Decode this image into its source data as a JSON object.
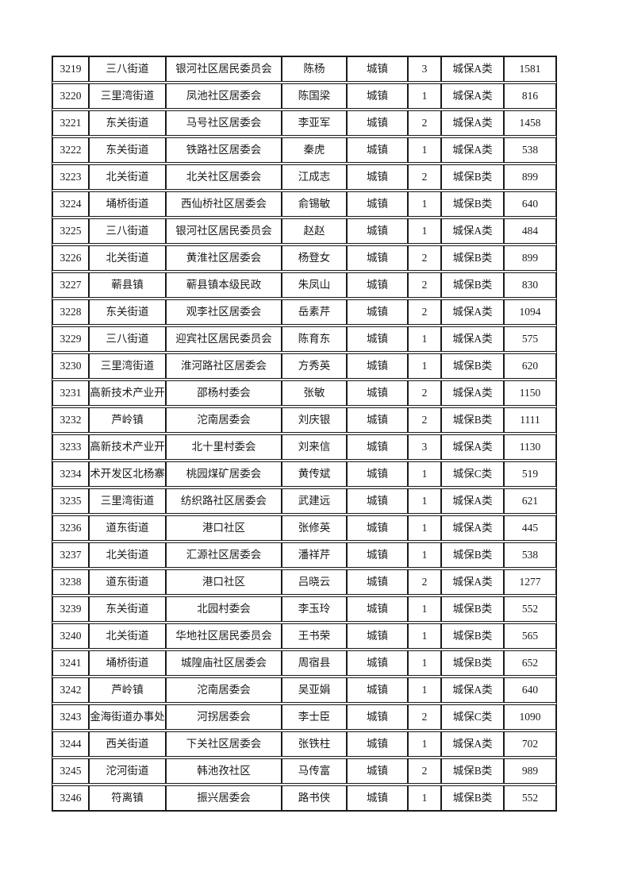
{
  "page": {
    "background_color": "#ffffff",
    "text_color": "#1a1a1a",
    "border_color": "#1a1a1a"
  },
  "table": {
    "columns": [
      "id",
      "township",
      "committee",
      "person-name",
      "residence-type",
      "count",
      "category",
      "amount"
    ],
    "rows": [
      [
        "3219",
        "三八街道",
        "银河社区居民委员会",
        "陈杨",
        "城镇",
        "3",
        "城保A类",
        "1581"
      ],
      [
        "3220",
        "三里湾街道",
        "凤池社区居委会",
        "陈国梁",
        "城镇",
        "1",
        "城保A类",
        "816"
      ],
      [
        "3221",
        "东关街道",
        "马号社区居委会",
        "李亚军",
        "城镇",
        "2",
        "城保A类",
        "1458"
      ],
      [
        "3222",
        "东关街道",
        "铁路社区居委会",
        "秦虎",
        "城镇",
        "1",
        "城保A类",
        "538"
      ],
      [
        "3223",
        "北关街道",
        "北关社区居委会",
        "江成志",
        "城镇",
        "2",
        "城保B类",
        "899"
      ],
      [
        "3224",
        "埇桥街道",
        "西仙桥社区居委会",
        "俞锡敏",
        "城镇",
        "1",
        "城保B类",
        "640"
      ],
      [
        "3225",
        "三八街道",
        "银河社区居民委员会",
        "赵赵",
        "城镇",
        "1",
        "城保A类",
        "484"
      ],
      [
        "3226",
        "北关街道",
        "黄淮社区居委会",
        "杨登女",
        "城镇",
        "2",
        "城保B类",
        "899"
      ],
      [
        "3227",
        "蕲县镇",
        "蕲县镇本级民政",
        "朱凤山",
        "城镇",
        "2",
        "城保B类",
        "830"
      ],
      [
        "3228",
        "东关街道",
        "观李社区居委会",
        "岳素芹",
        "城镇",
        "2",
        "城保A类",
        "1094"
      ],
      [
        "3229",
        "三八街道",
        "迎宾社区居民委员会",
        "陈育东",
        "城镇",
        "1",
        "城保A类",
        "575"
      ],
      [
        "3230",
        "三里湾街道",
        "淮河路社区居委会",
        "方秀英",
        "城镇",
        "1",
        "城保B类",
        "620"
      ],
      [
        "3231",
        "高新技术产业开",
        "邵杨村委会",
        "张敏",
        "城镇",
        "2",
        "城保A类",
        "1150"
      ],
      [
        "3232",
        "芦岭镇",
        "沱南居委会",
        "刘庆银",
        "城镇",
        "2",
        "城保B类",
        "1111"
      ],
      [
        "3233",
        "高新技术产业开",
        "北十里村委会",
        "刘来信",
        "城镇",
        "3",
        "城保A类",
        "1130"
      ],
      [
        "3234",
        "术开发区北杨寨",
        "桃园煤矿居委会",
        "黄传斌",
        "城镇",
        "1",
        "城保C类",
        "519"
      ],
      [
        "3235",
        "三里湾街道",
        "纺织路社区居委会",
        "武建远",
        "城镇",
        "1",
        "城保A类",
        "621"
      ],
      [
        "3236",
        "道东街道",
        "港口社区",
        "张修英",
        "城镇",
        "1",
        "城保A类",
        "445"
      ],
      [
        "3237",
        "北关街道",
        "汇源社区居委会",
        "潘祥芹",
        "城镇",
        "1",
        "城保B类",
        "538"
      ],
      [
        "3238",
        "道东街道",
        "港口社区",
        "吕晓云",
        "城镇",
        "2",
        "城保A类",
        "1277"
      ],
      [
        "3239",
        "东关街道",
        "北园村委会",
        "李玉玲",
        "城镇",
        "1",
        "城保B类",
        "552"
      ],
      [
        "3240",
        "北关街道",
        "华地社区居民委员会",
        "王书荣",
        "城镇",
        "1",
        "城保B类",
        "565"
      ],
      [
        "3241",
        "埇桥街道",
        "城隍庙社区居委会",
        "周宿县",
        "城镇",
        "1",
        "城保B类",
        "652"
      ],
      [
        "3242",
        "芦岭镇",
        "沱南居委会",
        "吴亚娟",
        "城镇",
        "1",
        "城保A类",
        "640"
      ],
      [
        "3243",
        "金海街道办事处",
        "河拐居委会",
        "李士臣",
        "城镇",
        "2",
        "城保C类",
        "1090"
      ],
      [
        "3244",
        "西关街道",
        "下关社区居委会",
        "张铁柱",
        "城镇",
        "1",
        "城保A类",
        "702"
      ],
      [
        "3245",
        "沱河街道",
        "韩池孜社区",
        "马传富",
        "城镇",
        "2",
        "城保B类",
        "989"
      ],
      [
        "3246",
        "符离镇",
        "振兴居委会",
        "路书侠",
        "城镇",
        "1",
        "城保B类",
        "552"
      ]
    ]
  }
}
